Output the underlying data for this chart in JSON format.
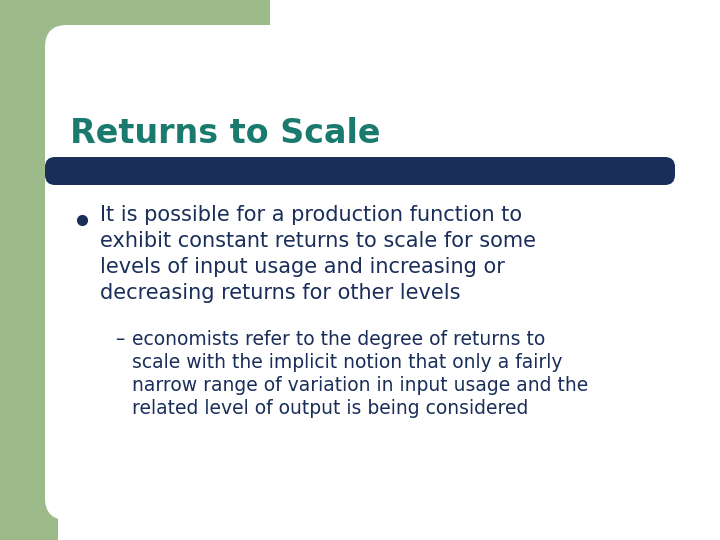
{
  "title": "Returns to Scale",
  "title_color": "#1a7a6e",
  "title_fontsize": 24,
  "title_bold": true,
  "bar_color": "#1a2e5a",
  "background_color": "#ffffff",
  "left_strip_color": "#9dba8a",
  "bullet_color": "#1a2e5a",
  "text_color": "#1a2e5a",
  "bullet_fontsize": 15,
  "sub_fontsize": 13.5,
  "bullet_text_line1": "It is possible for a production function to",
  "bullet_text_line2": "exhibit constant returns to scale for some",
  "bullet_text_line3": "levels of input usage and increasing or",
  "bullet_text_line4": "decreasing returns for other levels",
  "sub_text_line1": "economists refer to the degree of returns to",
  "sub_text_line2": "scale with the implicit notion that only a fairly",
  "sub_text_line3": "narrow range of variation in input usage and the",
  "sub_text_line4": "related level of output is being considered"
}
